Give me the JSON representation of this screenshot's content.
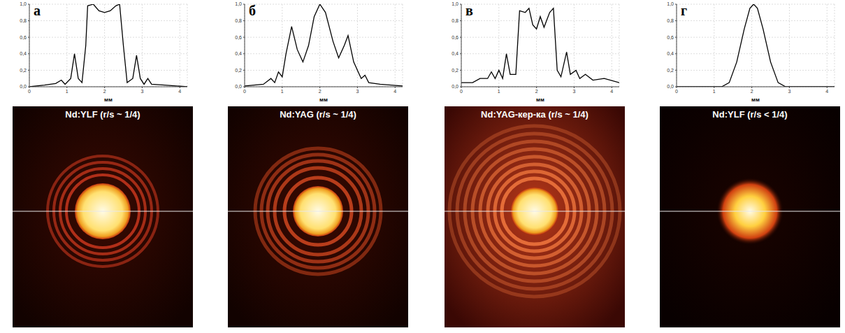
{
  "chart_data": [
    {
      "type": "line",
      "panel": "а",
      "annotations": [
        "Nd:YLF (r/s ~ 1/4)"
      ],
      "x_label": "мм",
      "color": "#000000",
      "grid": true,
      "xlim": [
        0,
        4.2
      ],
      "xticks": [
        0,
        1,
        2,
        3,
        4
      ],
      "ylim": [
        0,
        1
      ],
      "yticks": [
        {
          "value": 0,
          "label": "0,0"
        },
        {
          "value": 0.2,
          "label": "0,2"
        },
        {
          "value": 0.4,
          "label": "0,4"
        },
        {
          "value": 0.6,
          "label": "0,6"
        },
        {
          "value": 0.8,
          "label": "0,8"
        },
        {
          "value": 1,
          "label": "1,0"
        }
      ],
      "x": [
        0,
        0.4,
        0.7,
        0.85,
        0.95,
        1.1,
        1.2,
        1.3,
        1.4,
        1.5,
        1.55,
        1.7,
        1.85,
        2.0,
        2.15,
        2.3,
        2.4,
        2.5,
        2.6,
        2.75,
        2.85,
        2.95,
        3.05,
        3.15,
        3.25,
        3.6,
        4.2
      ],
      "values": [
        0.0,
        0.02,
        0.04,
        0.08,
        0.03,
        0.1,
        0.4,
        0.1,
        0.05,
        0.5,
        0.98,
        1.0,
        0.92,
        0.9,
        0.92,
        0.98,
        1.0,
        0.5,
        0.05,
        0.1,
        0.38,
        0.1,
        0.03,
        0.1,
        0.03,
        0.02,
        0.0
      ]
    },
    {
      "type": "line",
      "panel": "б",
      "annotations": [
        "Nd:YAG (r/s ~ 1/4)"
      ],
      "x_label": "мм",
      "color": "#000000",
      "grid": true,
      "xlim": [
        0,
        4.2
      ],
      "xticks": [
        0,
        1,
        2,
        3,
        4
      ],
      "ylim": [
        0,
        1
      ],
      "yticks": [
        {
          "value": 0,
          "label": "0,0"
        },
        {
          "value": 0.2,
          "label": "0,2"
        },
        {
          "value": 0.4,
          "label": "0,4"
        },
        {
          "value": 0.6,
          "label": "0,6"
        },
        {
          "value": 0.8,
          "label": "0,8"
        },
        {
          "value": 1,
          "label": "1,0"
        }
      ],
      "x": [
        0,
        0.5,
        0.7,
        0.8,
        0.9,
        1.0,
        1.1,
        1.25,
        1.4,
        1.55,
        1.7,
        1.85,
        2.0,
        2.15,
        2.35,
        2.5,
        2.65,
        2.75,
        2.9,
        3.0,
        3.1,
        3.2,
        3.3,
        3.6,
        4.2
      ],
      "values": [
        0.01,
        0.03,
        0.1,
        0.05,
        0.18,
        0.12,
        0.4,
        0.73,
        0.45,
        0.3,
        0.5,
        0.85,
        1.0,
        0.9,
        0.55,
        0.35,
        0.5,
        0.62,
        0.3,
        0.2,
        0.1,
        0.14,
        0.05,
        0.03,
        0.01
      ]
    },
    {
      "type": "line",
      "panel": "в",
      "annotations": [
        "Nd:YAG-кер-ка (r/s ~ 1/4)"
      ],
      "x_label": "мм",
      "color": "#000000",
      "grid": true,
      "xlim": [
        0,
        4.2
      ],
      "xticks": [
        0,
        1,
        2,
        3,
        4
      ],
      "ylim": [
        0,
        1
      ],
      "yticks": [
        {
          "value": 0,
          "label": "0,0"
        },
        {
          "value": 0.2,
          "label": "0,2"
        },
        {
          "value": 0.4,
          "label": "0,4"
        },
        {
          "value": 0.6,
          "label": "0,6"
        },
        {
          "value": 0.8,
          "label": "0,8"
        },
        {
          "value": 1,
          "label": "1,0"
        }
      ],
      "x": [
        0,
        0.3,
        0.5,
        0.7,
        0.8,
        0.9,
        1.0,
        1.1,
        1.2,
        1.3,
        1.45,
        1.55,
        1.7,
        1.8,
        1.9,
        2.0,
        2.1,
        2.2,
        2.35,
        2.45,
        2.55,
        2.65,
        2.8,
        2.9,
        3.05,
        3.15,
        3.3,
        3.5,
        3.8,
        4.2
      ],
      "values": [
        0.05,
        0.05,
        0.1,
        0.1,
        0.18,
        0.1,
        0.2,
        0.1,
        0.4,
        0.15,
        0.15,
        0.92,
        0.9,
        0.95,
        0.75,
        0.7,
        0.85,
        0.72,
        0.9,
        0.95,
        0.2,
        0.12,
        0.42,
        0.15,
        0.2,
        0.1,
        0.15,
        0.08,
        0.1,
        0.05
      ]
    },
    {
      "type": "line",
      "panel": "г",
      "annotations": [
        "Nd:YLF (r/s < 1/4)"
      ],
      "x_label": "мм",
      "color": "#000000",
      "grid": true,
      "xlim": [
        0,
        4.2
      ],
      "xticks": [
        0,
        1,
        2,
        3,
        4
      ],
      "ylim": [
        0,
        1
      ],
      "yticks": [
        {
          "value": 0,
          "label": "0,0"
        },
        {
          "value": 0.2,
          "label": "0,2"
        },
        {
          "value": 0.4,
          "label": "0,4"
        },
        {
          "value": 0.6,
          "label": "0,6"
        },
        {
          "value": 0.8,
          "label": "0,8"
        },
        {
          "value": 1,
          "label": "1,0"
        }
      ],
      "x": [
        0,
        1.2,
        1.4,
        1.6,
        1.8,
        1.95,
        2.05,
        2.15,
        2.3,
        2.5,
        2.7,
        2.9,
        4.2
      ],
      "values": [
        0,
        0,
        0.05,
        0.3,
        0.7,
        0.95,
        1.0,
        0.95,
        0.7,
        0.3,
        0.05,
        0,
        0
      ]
    }
  ]
}
